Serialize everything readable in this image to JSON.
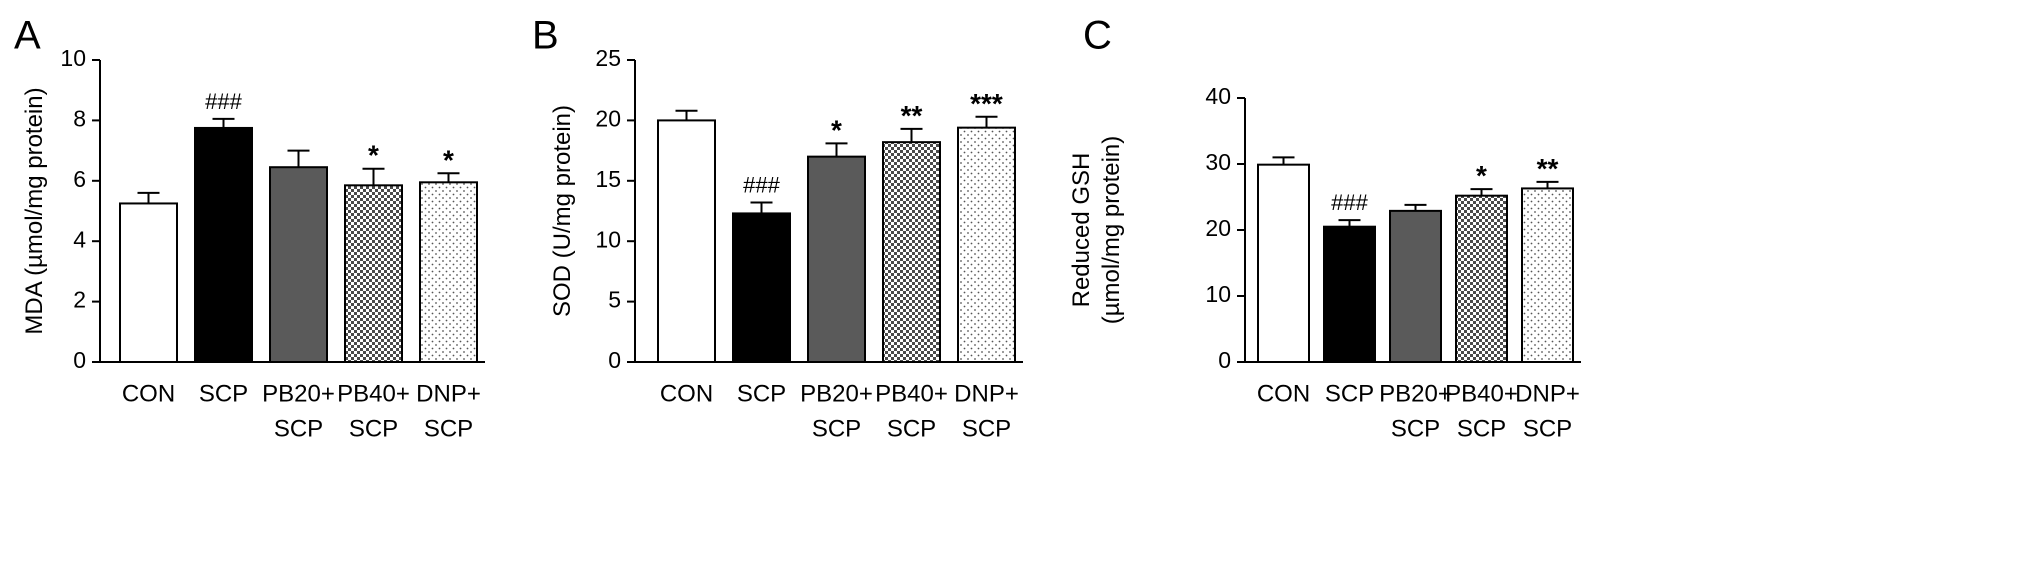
{
  "chart_data": [
    {
      "panel": "A",
      "type": "bar",
      "ylabel": "MDA (µmol/mg protein)",
      "ylim": [
        0,
        10
      ],
      "yticks": [
        0,
        2,
        4,
        6,
        8,
        10
      ],
      "categories": [
        [
          "CON"
        ],
        [
          "SCP"
        ],
        [
          "PB20+",
          "SCP"
        ],
        [
          "PB40+",
          "SCP"
        ],
        [
          "DNP+",
          "SCP"
        ]
      ],
      "values": [
        5.25,
        7.75,
        6.45,
        5.85,
        5.95
      ],
      "errors": [
        0.35,
        0.3,
        0.55,
        0.55,
        0.3
      ],
      "annotations": [
        "",
        "###",
        "",
        "*",
        "*"
      ],
      "fills": [
        "white",
        "black",
        "darkgray",
        "checker",
        "dots"
      ]
    },
    {
      "panel": "B",
      "type": "bar",
      "ylabel": "SOD (U/mg protein)",
      "ylim": [
        0,
        25
      ],
      "yticks": [
        0,
        5,
        10,
        15,
        20,
        25
      ],
      "categories": [
        [
          "CON"
        ],
        [
          "SCP"
        ],
        [
          "PB20+",
          "SCP"
        ],
        [
          "PB40+",
          "SCP"
        ],
        [
          "DNP+",
          "SCP"
        ]
      ],
      "values": [
        20.0,
        12.3,
        17.0,
        18.2,
        19.4
      ],
      "errors": [
        0.8,
        0.9,
        1.1,
        1.1,
        0.9
      ],
      "annotations": [
        "",
        "###",
        "*",
        "**",
        "***"
      ],
      "fills": [
        "white",
        "black",
        "darkgray",
        "checker",
        "dots"
      ]
    },
    {
      "panel": "C",
      "type": "bar",
      "ylabel": [
        "Reduced GSH",
        "(µmol/mg protein)"
      ],
      "ylim": [
        0,
        40
      ],
      "yticks": [
        0,
        10,
        20,
        30,
        40
      ],
      "categories": [
        [
          "CON"
        ],
        [
          "SCP"
        ],
        [
          "PB20+",
          "SCP"
        ],
        [
          "PB40+",
          "SCP"
        ],
        [
          "DNP+",
          "SCP"
        ]
      ],
      "values": [
        29.9,
        20.5,
        22.9,
        25.2,
        26.3
      ],
      "errors": [
        1.1,
        1.0,
        0.9,
        1.0,
        1.0
      ],
      "annotations": [
        "",
        "###",
        "",
        "*",
        "**"
      ],
      "fills": [
        "white",
        "black",
        "darkgray",
        "checker",
        "dots"
      ]
    }
  ],
  "colors": {
    "bar_dark": "#5a5a5a",
    "bar_black": "#000000",
    "stroke": "#000000"
  }
}
